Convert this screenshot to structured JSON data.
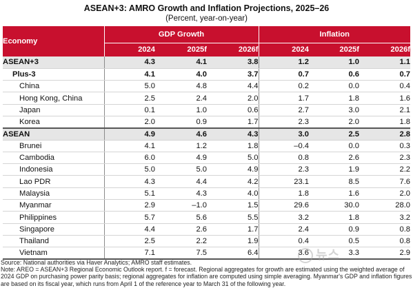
{
  "title": "ASEAN+3: AMRO Growth and Inflation Projections, 2025–26",
  "subtitle": "(Percent, year-on-year)",
  "header": {
    "economy": "Economy",
    "gdp_group": "GDP Growth",
    "inflation_group": "Inflation",
    "years": [
      "2024",
      "2025f",
      "2026f",
      "2024",
      "2025f",
      "2026f"
    ]
  },
  "rows": [
    {
      "name": "ASEAN+3",
      "type": "agg",
      "values": [
        "4.3",
        "4.1",
        "3.8",
        "1.2",
        "1.0",
        "1.1"
      ]
    },
    {
      "name": "Plus-3",
      "type": "agg2",
      "values": [
        "4.1",
        "4.0",
        "3.7",
        "0.7",
        "0.6",
        "0.7"
      ]
    },
    {
      "name": "China",
      "type": "country",
      "values": [
        "5.0",
        "4.8",
        "4.4",
        "0.2",
        "0.0",
        "0.4"
      ]
    },
    {
      "name": "Hong Kong, China",
      "type": "country",
      "values": [
        "2.5",
        "2.4",
        "2.0",
        "1.7",
        "1.8",
        "1.6"
      ]
    },
    {
      "name": "Japan",
      "type": "country",
      "values": [
        "0.1",
        "1.0",
        "0.6",
        "2.7",
        "3.0",
        "2.1"
      ]
    },
    {
      "name": "Korea",
      "type": "country",
      "values": [
        "2.0",
        "0.9",
        "1.7",
        "2.3",
        "2.0",
        "1.8"
      ]
    },
    {
      "name": "ASEAN",
      "type": "agg",
      "values": [
        "4.9",
        "4.6",
        "4.3",
        "3.0",
        "2.5",
        "2.8"
      ]
    },
    {
      "name": "Brunei",
      "type": "country",
      "values": [
        "4.1",
        "1.2",
        "1.8",
        "–0.4",
        "0.0",
        "0.3"
      ]
    },
    {
      "name": "Cambodia",
      "type": "country",
      "values": [
        "6.0",
        "4.9",
        "5.0",
        "0.8",
        "2.6",
        "2.3"
      ]
    },
    {
      "name": "Indonesia",
      "type": "country",
      "values": [
        "5.0",
        "5.0",
        "4.9",
        "2.3",
        "1.9",
        "2.2"
      ]
    },
    {
      "name": "Lao PDR",
      "type": "country",
      "values": [
        "4.3",
        "4.4",
        "4.2",
        "23.1",
        "8.5",
        "7.6"
      ]
    },
    {
      "name": "Malaysia",
      "type": "country",
      "values": [
        "5.1",
        "4.3",
        "4.0",
        "1.8",
        "1.6",
        "2.0"
      ]
    },
    {
      "name": "Myanmar",
      "type": "country",
      "values": [
        "2.9",
        "–1.0",
        "1.5",
        "29.6",
        "30.0",
        "28.0"
      ]
    },
    {
      "name": "Philippines",
      "type": "country",
      "values": [
        "5.7",
        "5.6",
        "5.5",
        "3.2",
        "1.8",
        "3.2"
      ]
    },
    {
      "name": "Singapore",
      "type": "country",
      "values": [
        "4.4",
        "2.6",
        "1.7",
        "2.4",
        "0.9",
        "0.8"
      ]
    },
    {
      "name": "Thailand",
      "type": "country",
      "values": [
        "2.5",
        "2.2",
        "1.9",
        "0.4",
        "0.5",
        "0.8"
      ]
    },
    {
      "name": "Vietnam",
      "type": "country",
      "values": [
        "7.1",
        "7.5",
        "6.4",
        "3.6",
        "3.3",
        "2.9"
      ]
    }
  ],
  "source": "Source: National authorities via Haver Analytics; AMRO staff estimates.",
  "note": "Note: AREO = ASEAN+3 Regional Economic Outlook report. f = forecast. Regional aggregates for growth are estimated using the weighted average of 2024 GDP on purchasing power parity basis; regional aggregates for inflation are computed using simple averaging. Myanmar's GDP and inflation figures are based on its fiscal year, which runs from April 1 of the reference year to March 31 of the following year.",
  "watermark": "뉴스"
}
